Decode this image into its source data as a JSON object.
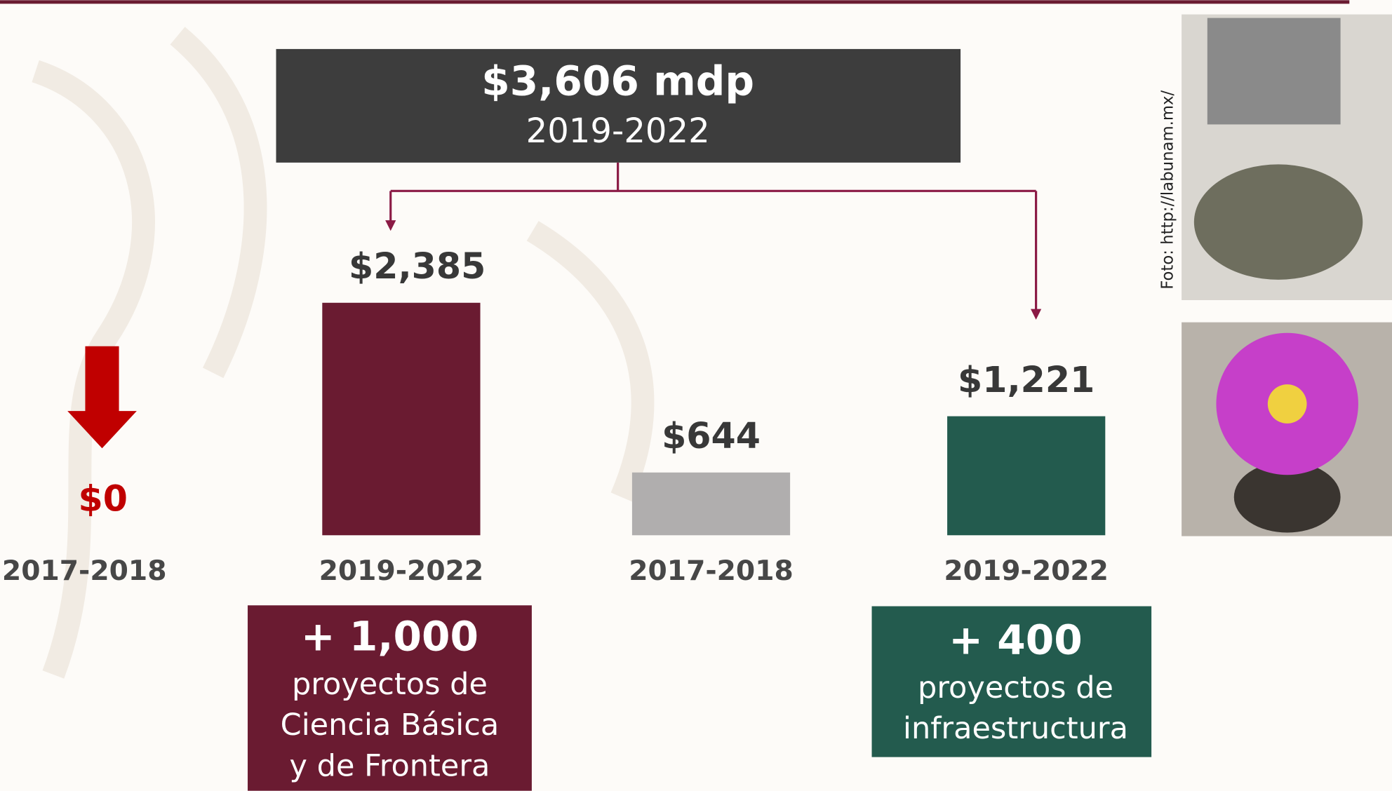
{
  "header": {
    "title": "$3,606 mdp",
    "subtitle": "2019-2022"
  },
  "chart_data": {
    "type": "bar",
    "categories": [
      "2017-2018",
      "2019-2022",
      "2017-2018",
      "2019-2022"
    ],
    "values": [
      0,
      2385,
      644,
      1221
    ],
    "value_labels": [
      "$0",
      "$2,385",
      "$644",
      "$1,221"
    ],
    "colors": [
      "#c00000",
      "#6a1b31",
      "#b0aeae",
      "#235b4e"
    ]
  },
  "callouts": [
    {
      "number": "+ 1,000",
      "lines": [
        "proyectos de",
        "Ciencia Básica",
        "y de Frontera"
      ],
      "color": "#6a1b31"
    },
    {
      "number": "+ 400",
      "lines": [
        "proyectos de",
        "infraestructura"
      ],
      "color": "#235b4e"
    }
  ],
  "photo_credit": "Foto: http://labunam.mx/"
}
